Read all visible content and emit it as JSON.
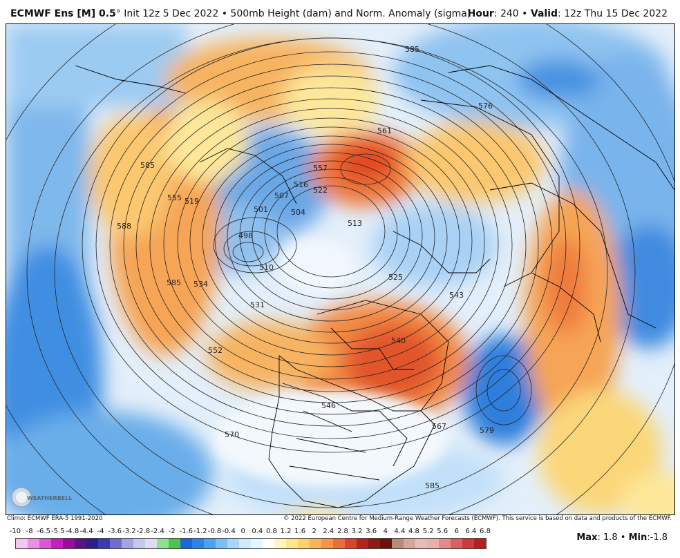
{
  "header": {
    "model": "ECMWF Ens [M] 0.5",
    "degree": "°",
    "init": "Init 12z 5 Dec 2022",
    "bullet": "•",
    "field": "500mb Height (dam) and Norm. Anomaly (sigma)",
    "hour_label": "Hour",
    "hour_value": ": 240",
    "valid_label": "Valid",
    "valid_value": ": 12z Thu 15 Dec 2022"
  },
  "map": {
    "height_contours": [
      "585",
      "576",
      "561",
      "557",
      "522",
      "516",
      "507",
      "504",
      "501",
      "498",
      "513",
      "510",
      "531",
      "525",
      "543",
      "540",
      "546",
      "552",
      "570",
      "567",
      "579",
      "585",
      "588",
      "585",
      "555",
      "534",
      "519",
      "585"
    ],
    "logo_text": "WEATHERBELL"
  },
  "footer": {
    "climo": "Climo: ECMWF ERA-5 1991-2020",
    "copyright": "© 2022 European Centre for Medium-Range Weather Forecasts (ECMWF). This service is based on data and products of the ECMWF."
  },
  "colorbar": {
    "ticks": [
      "-10",
      "-8",
      "-6.5",
      "-5.5",
      "-4.8",
      "-4.4",
      "-4",
      "-3.6",
      "-3.2",
      "-2.8",
      "-2.4",
      "-2",
      "-1.6",
      "-1.2",
      "-0.8",
      "-0.4",
      "0",
      "0.4",
      "0.8",
      "1.2",
      "1.6",
      "2",
      "2.4",
      "2.8",
      "3.2",
      "3.6",
      "4",
      "4.4",
      "4.8",
      "5.2",
      "5.6",
      "6",
      "6.4",
      "6.8"
    ],
    "colors": [
      "#f5c6f0",
      "#ea8fe4",
      "#dc55d6",
      "#c61fbf",
      "#9a0c9a",
      "#5a157f",
      "#2a1f8c",
      "#3a3ab4",
      "#6e6ed0",
      "#a4a4e0",
      "#c7c7ec",
      "#dcdcf2",
      "#8fe08a",
      "#4ec44a",
      "#1a68d8",
      "#2a86ea",
      "#4aa2f2",
      "#7abff7",
      "#a6d7fb",
      "#cfe9fd",
      "#e8f4fe",
      "#ffffff",
      "#fff6c2",
      "#ffe68a",
      "#ffd166",
      "#fdb35a",
      "#f79448",
      "#ee6c38",
      "#d9442a",
      "#b42418",
      "#8e1a12",
      "#6a130d",
      "#b98a7a",
      "#d7a69b",
      "#e7bcb3",
      "#eab0b0",
      "#e48a8a",
      "#da6060",
      "#cb3b3b",
      "#b51f1f"
    ],
    "max_label": "Max",
    "max_value": ": 1.8",
    "min_label": "Min",
    "min_value": ":-1.8"
  }
}
